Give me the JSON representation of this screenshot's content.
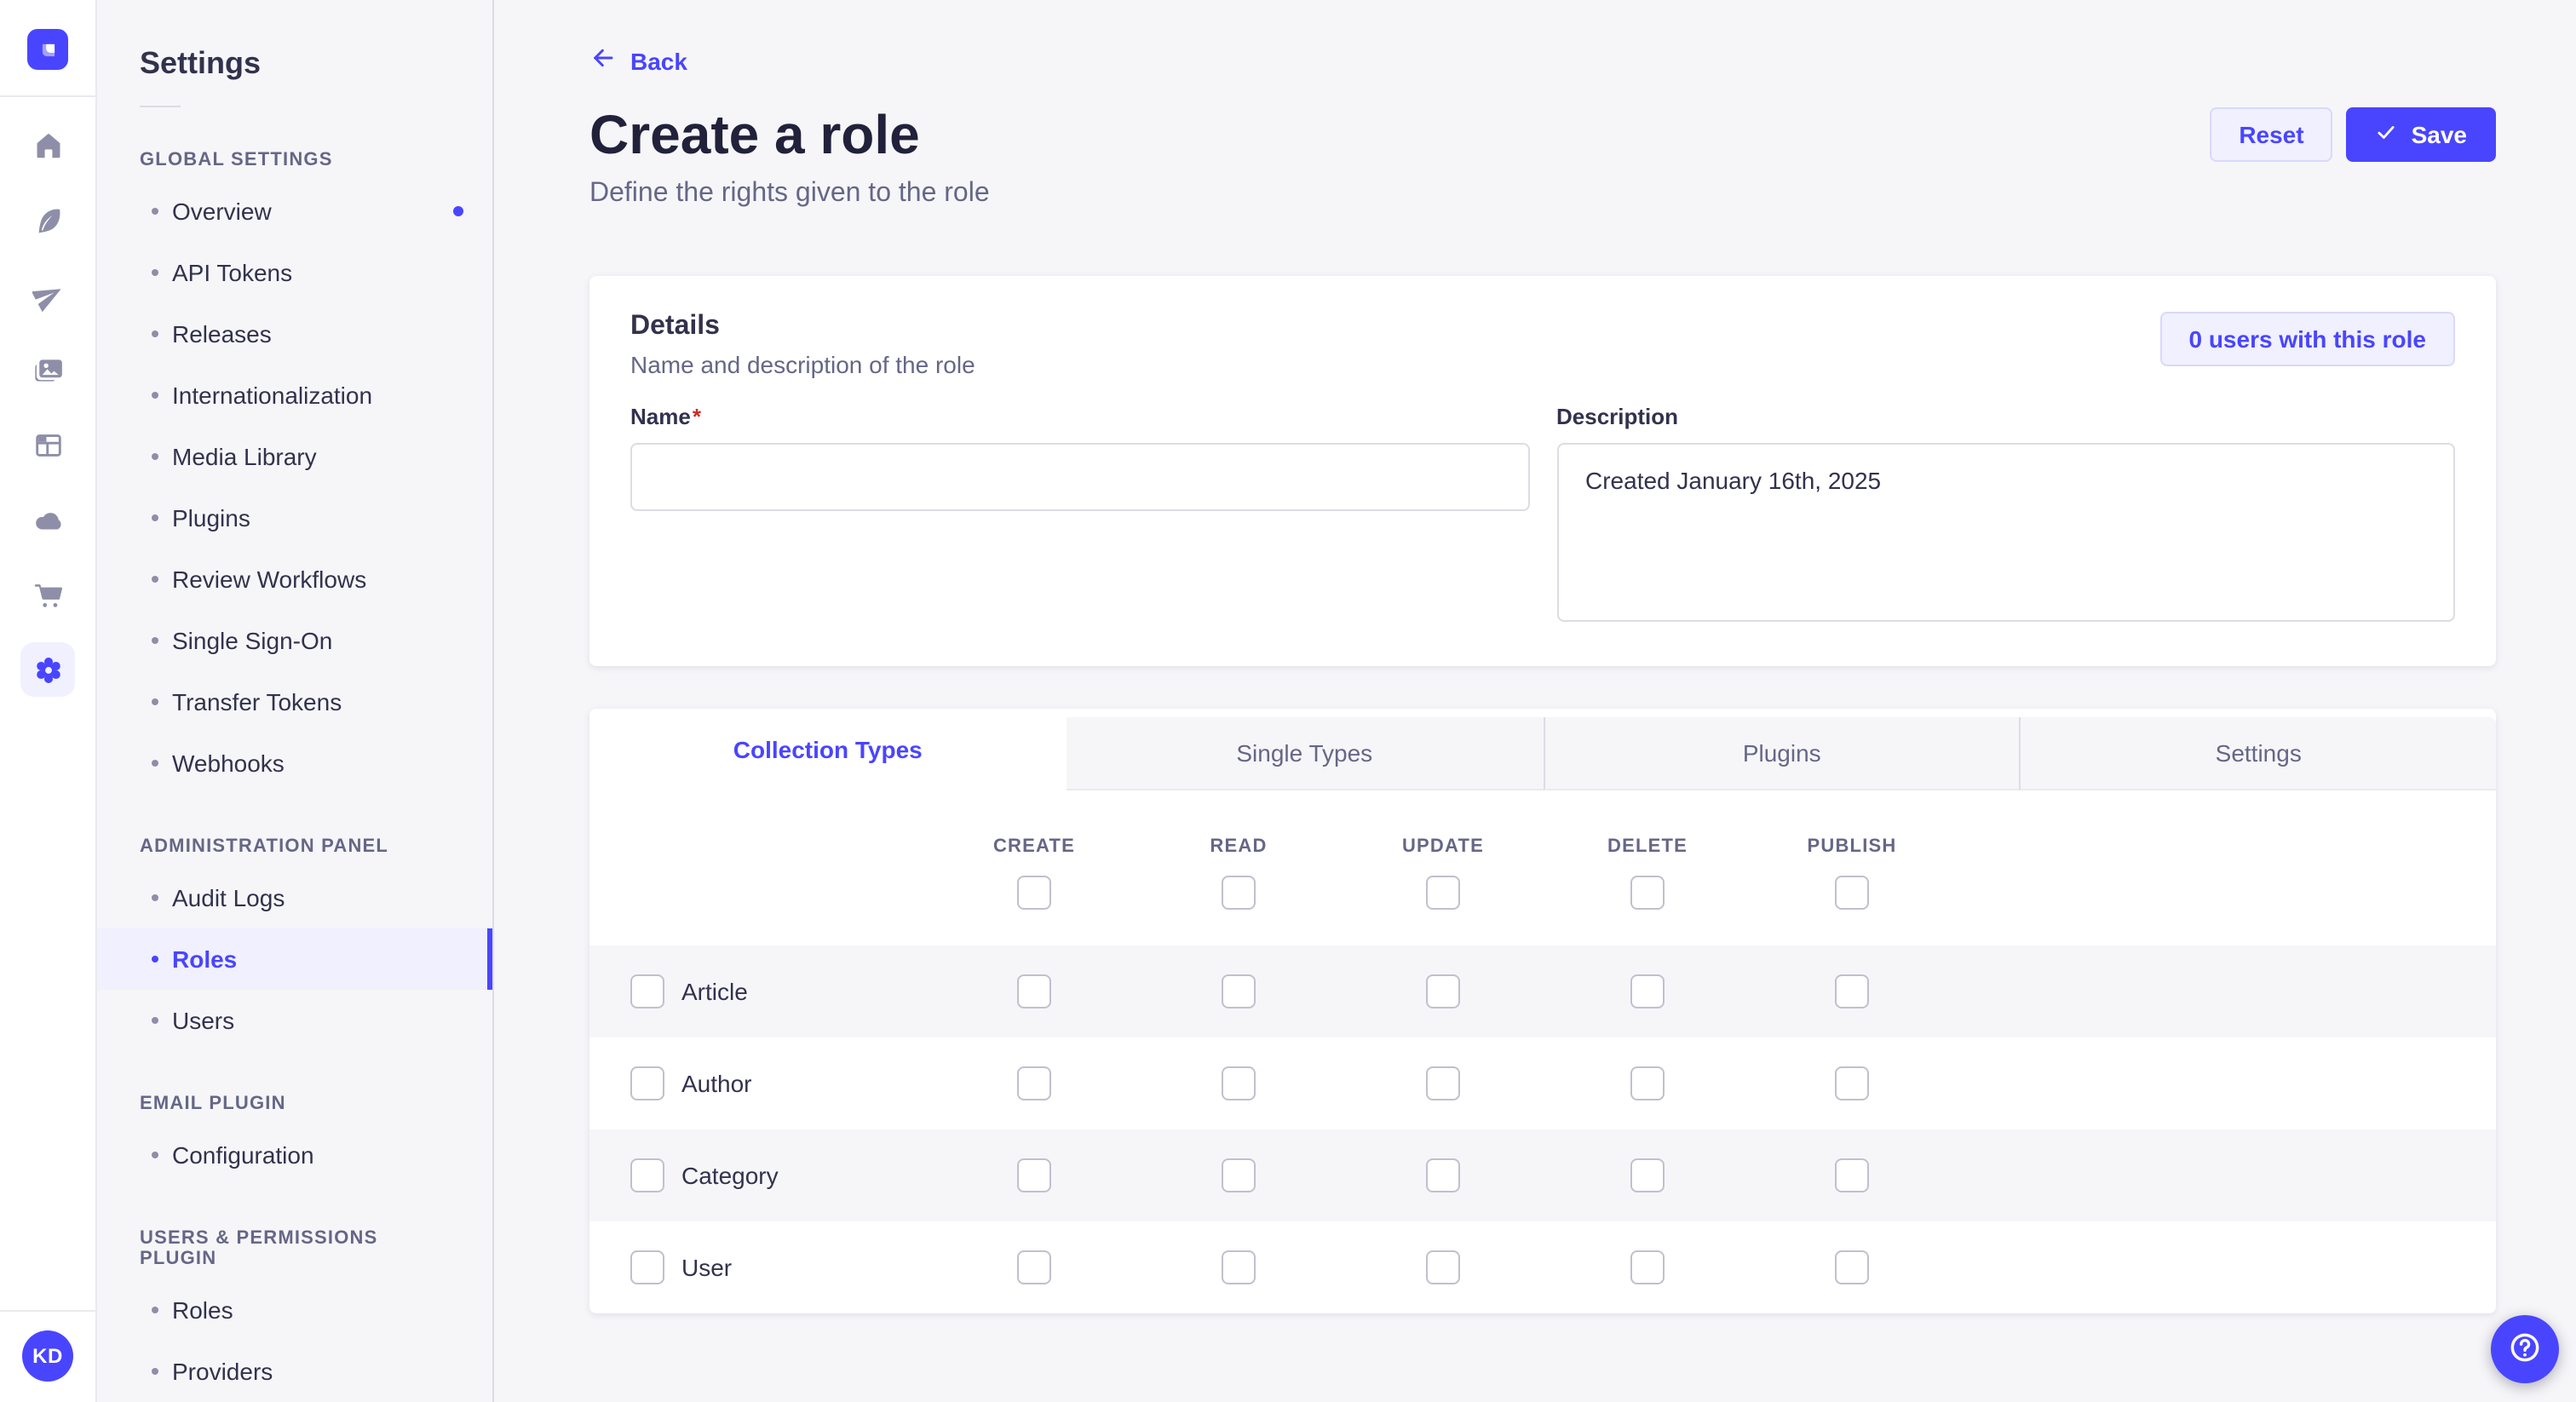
{
  "colors": {
    "accent": "#4945ff",
    "accent_light": "#f0f0ff",
    "accent_border": "#d9d8ff",
    "text_dark": "#32324d",
    "text_muted": "#666687",
    "danger": "#d02b20",
    "page_bg": "#f6f6f9"
  },
  "rail": {
    "logo_icon": "strapi-logo-icon",
    "items": [
      {
        "icon": "home-icon",
        "active": false
      },
      {
        "icon": "feather-icon",
        "active": false
      },
      {
        "icon": "paper-plane-icon",
        "active": false
      },
      {
        "icon": "images-icon",
        "active": false
      },
      {
        "icon": "layout-icon",
        "active": false
      },
      {
        "icon": "cloud-icon",
        "active": false
      },
      {
        "icon": "cart-icon",
        "active": false
      },
      {
        "icon": "gear-icon",
        "active": true
      }
    ],
    "avatar_initials": "KD"
  },
  "settings_nav": {
    "title": "Settings",
    "sections": [
      {
        "label": "GLOBAL SETTINGS",
        "items": [
          {
            "label": "Overview",
            "dot": true
          },
          {
            "label": "API Tokens"
          },
          {
            "label": "Releases"
          },
          {
            "label": "Internationalization"
          },
          {
            "label": "Media Library"
          },
          {
            "label": "Plugins"
          },
          {
            "label": "Review Workflows"
          },
          {
            "label": "Single Sign-On"
          },
          {
            "label": "Transfer Tokens"
          },
          {
            "label": "Webhooks"
          }
        ]
      },
      {
        "label": "ADMINISTRATION PANEL",
        "items": [
          {
            "label": "Audit Logs"
          },
          {
            "label": "Roles",
            "active": true
          },
          {
            "label": "Users"
          }
        ]
      },
      {
        "label": "EMAIL PLUGIN",
        "items": [
          {
            "label": "Configuration"
          }
        ]
      },
      {
        "label": "USERS & PERMISSIONS PLUGIN",
        "items": [
          {
            "label": "Roles"
          },
          {
            "label": "Providers"
          }
        ]
      }
    ]
  },
  "header": {
    "back_label": "Back",
    "title": "Create a role",
    "subtitle": "Define the rights given to the role",
    "reset_label": "Reset",
    "save_label": "Save"
  },
  "details": {
    "title": "Details",
    "subtitle": "Name and description of the role",
    "users_button_label": "0 users with this role",
    "name_label": "Name",
    "required_mark": "*",
    "name_value": "",
    "description_label": "Description",
    "description_value": "Created January 16th, 2025"
  },
  "permissions": {
    "tabs": [
      {
        "label": "Collection Types",
        "active": true
      },
      {
        "label": "Single Types",
        "active": false
      },
      {
        "label": "Plugins",
        "active": false
      },
      {
        "label": "Settings",
        "active": false
      }
    ],
    "columns": [
      "CREATE",
      "READ",
      "UPDATE",
      "DELETE",
      "PUBLISH"
    ],
    "select_all": [
      false,
      false,
      false,
      false,
      false
    ],
    "rows": [
      {
        "name": "Article",
        "checked": false,
        "checks": [
          false,
          false,
          false,
          false,
          false
        ]
      },
      {
        "name": "Author",
        "checked": false,
        "checks": [
          false,
          false,
          false,
          false,
          false
        ]
      },
      {
        "name": "Category",
        "checked": false,
        "checks": [
          false,
          false,
          false,
          false,
          false
        ]
      },
      {
        "name": "User",
        "checked": false,
        "checks": [
          false,
          false,
          false,
          false,
          false
        ]
      }
    ]
  },
  "help_button": {
    "icon": "question-icon"
  }
}
